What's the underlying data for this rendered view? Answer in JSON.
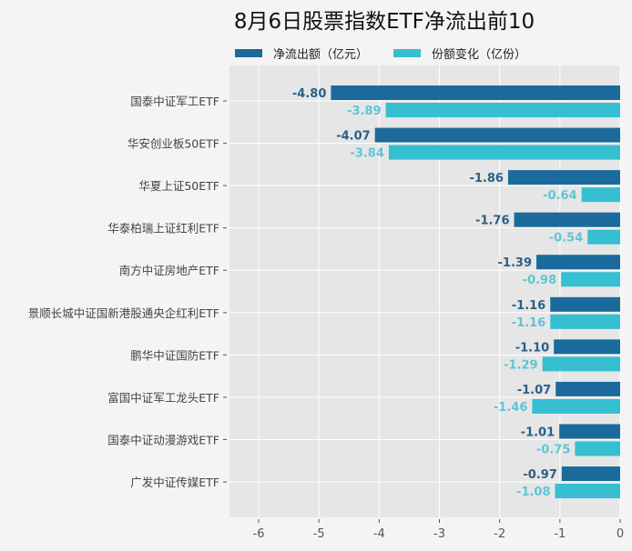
{
  "chart_data": {
    "type": "bar",
    "orientation": "horizontal",
    "title": "8月6日股票指数ETF净流出前10",
    "categories": [
      "国泰中证军工ETF",
      "华安创业板50ETF",
      "华夏上证50ETF",
      "华泰柏瑞上证红利ETF",
      "南方中证房地产ETF",
      "景顺长城中证国新港股通央企红利ETF",
      "鹏华中证国防ETF",
      "富国中证军工龙头ETF",
      "国泰中证动漫游戏ETF",
      "广发中证传媒ETF"
    ],
    "series": [
      {
        "name": "净流出额（亿元）",
        "color": "#1a6b9b",
        "label_color": "#2a5f86",
        "values": [
          -4.8,
          -4.07,
          -1.86,
          -1.76,
          -1.39,
          -1.16,
          -1.1,
          -1.07,
          -1.01,
          -0.97
        ]
      },
      {
        "name": "份额变化（亿份）",
        "color": "#35bfd1",
        "label_color": "#5ec5d5",
        "values": [
          -3.89,
          -3.84,
          -0.64,
          -0.54,
          -0.98,
          -1.16,
          -1.29,
          -1.46,
          -0.75,
          -1.08
        ]
      }
    ],
    "xlim": [
      -6,
      0
    ],
    "xticks": [
      "-6",
      "-5",
      "-4",
      "-3",
      "-2",
      "-1",
      "0"
    ],
    "grid": true,
    "legend": "top"
  }
}
